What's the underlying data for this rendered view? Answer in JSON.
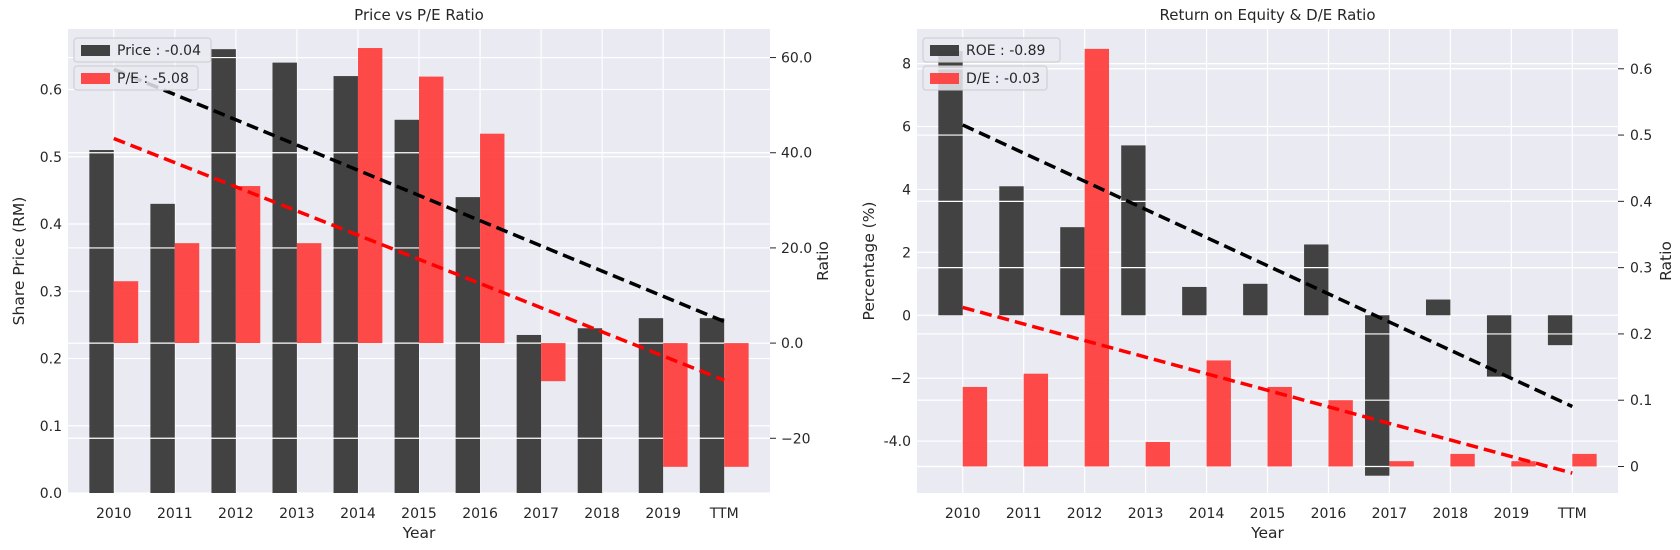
{
  "colors": {
    "background": "#eaeaf2",
    "grid": "#ffffff",
    "bar_primary": "#333333",
    "bar_secondary": "#ff3b3b",
    "trend_primary": "#000000",
    "trend_secondary": "#ff0000"
  },
  "chart_data": [
    {
      "type": "bar",
      "title": "Price vs P/E Ratio",
      "xlabel": "Year",
      "ylabel_left": "Share Price (RM)",
      "ylabel_right": "Ratio",
      "categories": [
        "2010",
        "2011",
        "2012",
        "2013",
        "2014",
        "2015",
        "2016",
        "2017",
        "2018",
        "2019",
        "TTM"
      ],
      "series": [
        {
          "name": "Price",
          "legend_label": "Price : -0.04",
          "axis": "left",
          "values": [
            0.51,
            0.43,
            0.66,
            0.64,
            0.62,
            0.555,
            0.44,
            0.235,
            0.245,
            0.26,
            0.26
          ]
        },
        {
          "name": "P/E",
          "legend_label": "P/E : -5.08",
          "axis": "right",
          "values": [
            13,
            21,
            33,
            21,
            62,
            56,
            44,
            -8,
            0,
            -26,
            -26
          ]
        }
      ],
      "trendlines": [
        {
          "series": "Price",
          "axis": "left",
          "start": [
            0,
            0.63
          ],
          "end": [
            10,
            0.255
          ]
        },
        {
          "series": "P/E",
          "axis": "right",
          "start": [
            0,
            43
          ],
          "end": [
            10,
            -7.8
          ]
        }
      ],
      "ylim_left": [
        0,
        0.69
      ],
      "ylim_right": [
        -31.5,
        66
      ],
      "yticks_left": [
        0.0,
        0.1,
        0.2,
        0.3,
        0.4,
        0.5,
        0.6
      ],
      "yticks_right": [
        -20,
        0,
        20,
        40,
        60
      ],
      "legend_position": "top-left",
      "grid": true
    },
    {
      "type": "bar",
      "title": "Return on Equity & D/E Ratio",
      "xlabel": "Year",
      "ylabel_left": "Percentage (%)",
      "ylabel_right": "Ratio",
      "categories": [
        "2010",
        "2011",
        "2012",
        "2013",
        "2014",
        "2015",
        "2016",
        "2017",
        "2018",
        "2019",
        "TTM"
      ],
      "series": [
        {
          "name": "ROE",
          "legend_label": "ROE : -0.89",
          "axis": "left",
          "values": [
            8.4,
            4.1,
            2.8,
            5.4,
            0.9,
            1.0,
            2.25,
            -5.1,
            0.5,
            -1.95,
            -0.95
          ]
        },
        {
          "name": "D/E",
          "legend_label": "D/E : -0.03",
          "axis": "right",
          "values": [
            0.12,
            0.14,
            0.63,
            0.037,
            0.16,
            0.12,
            0.1,
            0.008,
            0.019,
            0.008,
            0.019
          ]
        }
      ],
      "trendlines": [
        {
          "series": "ROE",
          "axis": "left",
          "start": [
            0,
            6.05
          ],
          "end": [
            10,
            -2.9
          ]
        },
        {
          "series": "D/E",
          "axis": "right",
          "start": [
            0,
            0.24
          ],
          "end": [
            10,
            -0.01
          ]
        }
      ],
      "ylim_left": [
        -5.65,
        9.1
      ],
      "ylim_right": [
        -0.04,
        0.66
      ],
      "yticks_left": [
        -4,
        -2,
        0,
        2,
        4,
        6,
        8
      ],
      "yticks_right": [
        0.0,
        0.1,
        0.2,
        0.3,
        0.4,
        0.5,
        0.6
      ],
      "legend_position": "top-left",
      "grid": true
    }
  ]
}
